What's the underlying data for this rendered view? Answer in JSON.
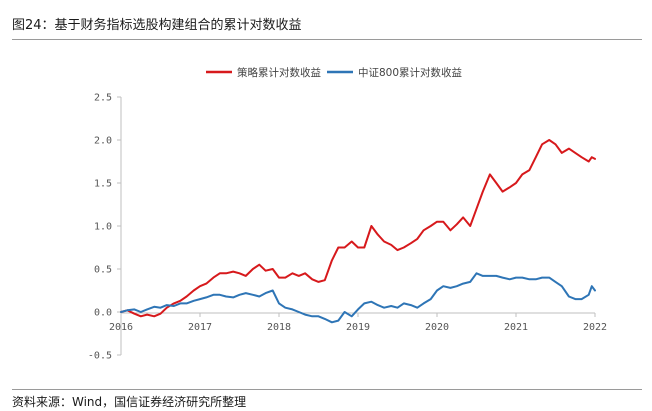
{
  "figure": {
    "title": "图24：基于财务指标选股构建组合的累计对数收益",
    "source": "资料来源：Wind，国信证券经济研究所整理"
  },
  "chart_data": {
    "type": "line",
    "title": "",
    "xlabel": "",
    "ylabel": "",
    "ylim": [
      -0.5,
      2.5
    ],
    "xlim": [
      2016,
      2022
    ],
    "y_ticks": [
      "2.5",
      "2.0",
      "1.5",
      "1.0",
      "0.5",
      "0.0",
      "-0.5"
    ],
    "y_tick_values": [
      2.5,
      2.0,
      1.5,
      1.0,
      0.5,
      0.0,
      -0.5
    ],
    "x_ticks": [
      "2016",
      "2017",
      "2018",
      "2019",
      "2020",
      "2021",
      "2022"
    ],
    "x_tick_values": [
      2016,
      2017,
      2018,
      2019,
      2020,
      2021,
      2022
    ],
    "grid": false,
    "legend_position": "top-center",
    "series": [
      {
        "name": "策略累计对数收益",
        "color": "#d7191c",
        "x": [
          2016.0,
          2016.08,
          2016.17,
          2016.25,
          2016.33,
          2016.42,
          2016.5,
          2016.58,
          2016.67,
          2016.75,
          2016.83,
          2016.92,
          2017.0,
          2017.08,
          2017.17,
          2017.25,
          2017.33,
          2017.42,
          2017.5,
          2017.58,
          2017.67,
          2017.75,
          2017.83,
          2017.92,
          2018.0,
          2018.08,
          2018.17,
          2018.25,
          2018.33,
          2018.42,
          2018.5,
          2018.58,
          2018.67,
          2018.75,
          2018.83,
          2018.92,
          2019.0,
          2019.08,
          2019.17,
          2019.25,
          2019.33,
          2019.42,
          2019.5,
          2019.58,
          2019.67,
          2019.75,
          2019.83,
          2019.92,
          2020.0,
          2020.08,
          2020.17,
          2020.25,
          2020.33,
          2020.42,
          2020.5,
          2020.58,
          2020.67,
          2020.75,
          2020.83,
          2020.92,
          2021.0,
          2021.08,
          2021.17,
          2021.25,
          2021.33,
          2021.42,
          2021.5,
          2021.58,
          2021.67,
          2021.75,
          2021.83,
          2021.92,
          2021.96,
          2022.0
        ],
        "values": [
          0.0,
          0.02,
          -0.02,
          -0.05,
          -0.03,
          -0.05,
          -0.02,
          0.05,
          0.1,
          0.13,
          0.18,
          0.25,
          0.3,
          0.33,
          0.4,
          0.45,
          0.45,
          0.47,
          0.45,
          0.42,
          0.5,
          0.55,
          0.48,
          0.5,
          0.4,
          0.4,
          0.45,
          0.42,
          0.45,
          0.38,
          0.35,
          0.37,
          0.6,
          0.75,
          0.75,
          0.82,
          0.75,
          0.75,
          1.0,
          0.9,
          0.82,
          0.78,
          0.72,
          0.75,
          0.8,
          0.85,
          0.95,
          1.0,
          1.05,
          1.05,
          0.95,
          1.02,
          1.1,
          1.0,
          1.2,
          1.4,
          1.6,
          1.5,
          1.4,
          1.45,
          1.5,
          1.6,
          1.65,
          1.8,
          1.95,
          2.0,
          1.95,
          1.85,
          1.9,
          1.85,
          1.8,
          1.75,
          1.8,
          1.78
        ]
      },
      {
        "name": "中证800累计对数收益",
        "color": "#2e75b6",
        "x": [
          2016.0,
          2016.08,
          2016.17,
          2016.25,
          2016.33,
          2016.42,
          2016.5,
          2016.58,
          2016.67,
          2016.75,
          2016.83,
          2016.92,
          2017.0,
          2017.08,
          2017.17,
          2017.25,
          2017.33,
          2017.42,
          2017.5,
          2017.58,
          2017.67,
          2017.75,
          2017.83,
          2017.92,
          2018.0,
          2018.08,
          2018.17,
          2018.25,
          2018.33,
          2018.42,
          2018.5,
          2018.58,
          2018.67,
          2018.75,
          2018.83,
          2018.92,
          2019.0,
          2019.08,
          2019.17,
          2019.25,
          2019.33,
          2019.42,
          2019.5,
          2019.58,
          2019.67,
          2019.75,
          2019.83,
          2019.92,
          2020.0,
          2020.08,
          2020.17,
          2020.25,
          2020.33,
          2020.42,
          2020.5,
          2020.58,
          2020.67,
          2020.75,
          2020.83,
          2020.92,
          2021.0,
          2021.08,
          2021.17,
          2021.25,
          2021.33,
          2021.42,
          2021.5,
          2021.58,
          2021.67,
          2021.75,
          2021.83,
          2021.92,
          2021.96,
          2022.0
        ],
        "values": [
          0.0,
          0.02,
          0.03,
          0.0,
          0.03,
          0.06,
          0.05,
          0.08,
          0.07,
          0.1,
          0.1,
          0.13,
          0.15,
          0.17,
          0.2,
          0.2,
          0.18,
          0.17,
          0.2,
          0.22,
          0.2,
          0.18,
          0.22,
          0.25,
          0.1,
          0.05,
          0.03,
          0.0,
          -0.03,
          -0.05,
          -0.05,
          -0.08,
          -0.12,
          -0.1,
          0.0,
          -0.05,
          0.03,
          0.1,
          0.12,
          0.08,
          0.05,
          0.07,
          0.05,
          0.1,
          0.08,
          0.05,
          0.1,
          0.15,
          0.25,
          0.3,
          0.28,
          0.3,
          0.33,
          0.35,
          0.45,
          0.42,
          0.42,
          0.42,
          0.4,
          0.38,
          0.4,
          0.4,
          0.38,
          0.38,
          0.4,
          0.4,
          0.35,
          0.3,
          0.18,
          0.15,
          0.15,
          0.2,
          0.3,
          0.25
        ]
      }
    ]
  }
}
